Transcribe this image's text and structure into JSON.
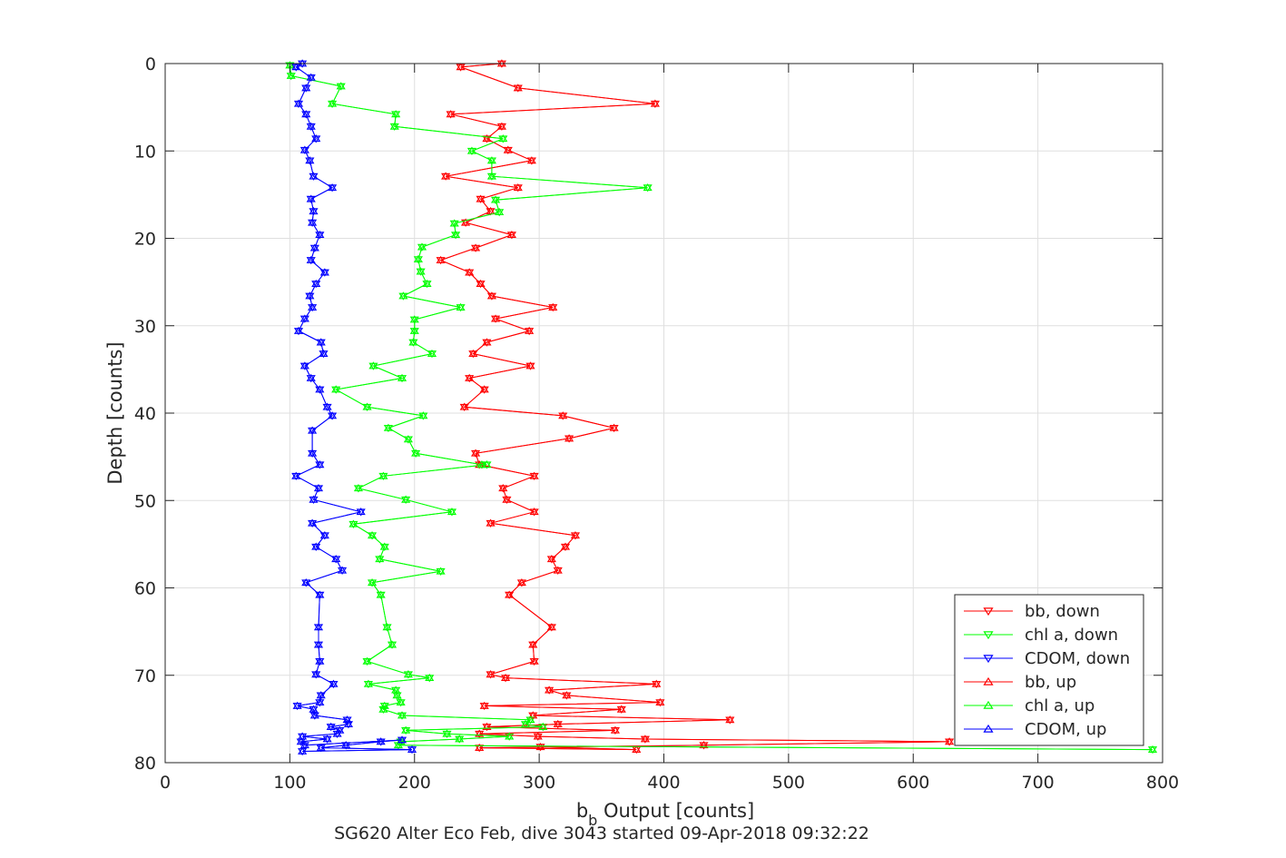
{
  "chart_data": {
    "type": "line",
    "title": "SG620 Alter Eco Feb, dive 3043 started 09-Apr-2018 09:32:22",
    "xlabel_main": "b",
    "xlabel_sub": "b",
    "xlabel_rest": " Output [counts]",
    "ylabel": "Depth [counts]",
    "xlim": [
      0,
      800
    ],
    "ylim": [
      0,
      80
    ],
    "y_reversed": true,
    "grid": true,
    "legend_position": "bottom-right",
    "xticks": [
      0,
      100,
      200,
      300,
      400,
      500,
      600,
      700,
      800
    ],
    "yticks": [
      0,
      10,
      20,
      30,
      40,
      50,
      60,
      70,
      80
    ],
    "series": [
      {
        "name": "bb, down",
        "color": "#ff0000",
        "marker": "down",
        "x": [
          270,
          237,
          283,
          393,
          229,
          270,
          258,
          275,
          294,
          225,
          283,
          253,
          261,
          241,
          278,
          249,
          221,
          244,
          253,
          262,
          311,
          265,
          292,
          258,
          247,
          293,
          244,
          256,
          240,
          319,
          360,
          324,
          249,
          252,
          296,
          271,
          274,
          296,
          261,
          329,
          321,
          310,
          315,
          286,
          276,
          310,
          295,
          296,
          261,
          273,
          394,
          308,
          322,
          397,
          256,
          366,
          295,
          453,
          315,
          258,
          361,
          252,
          299,
          385,
          629,
          432,
          252,
          378,
          301
        ],
        "y": [
          0,
          0.4,
          2.8,
          4.6,
          5.8,
          7.2,
          8.6,
          9.9,
          11.1,
          12.9,
          14.2,
          15.5,
          16.9,
          18.2,
          19.6,
          21.1,
          22.5,
          23.9,
          25.2,
          26.6,
          27.9,
          29.2,
          30.6,
          31.9,
          33.2,
          34.6,
          36.0,
          37.3,
          39.3,
          40.3,
          41.7,
          42.9,
          44.6,
          45.9,
          47.2,
          48.6,
          49.9,
          51.3,
          52.6,
          54.0,
          55.3,
          56.7,
          58.0,
          59.4,
          60.8,
          64.5,
          66.5,
          68.4,
          69.9,
          70.3,
          71.0,
          71.7,
          72.3,
          73.1,
          73.5,
          73.9,
          74.6,
          75.1,
          75.6,
          75.9,
          76.3,
          76.7,
          77.0,
          77.3,
          77.6,
          78.0,
          78.3,
          78.5,
          78.2
        ]
      },
      {
        "name": "chl a, down",
        "color": "#00ff00",
        "marker": "down",
        "x": [
          100,
          101,
          141,
          134,
          185,
          184,
          271,
          246,
          262,
          262,
          387,
          265,
          268,
          232,
          233,
          206,
          203,
          205,
          210,
          191,
          237,
          200,
          200,
          199,
          214,
          167,
          190,
          137,
          162,
          207,
          179,
          195,
          201,
          254,
          258,
          175,
          155,
          193,
          230,
          151,
          166,
          176,
          172,
          221,
          166,
          173,
          178,
          182,
          162,
          195,
          212,
          163,
          185,
          186,
          189,
          176,
          175,
          190,
          293,
          289,
          303,
          193,
          226,
          276,
          236,
          189,
          187,
          792
        ],
        "y": [
          0.2,
          1.4,
          2.6,
          4.6,
          5.8,
          7.2,
          8.6,
          10.0,
          11.1,
          12.9,
          14.2,
          15.6,
          17.0,
          18.3,
          19.6,
          21.0,
          22.4,
          23.8,
          25.2,
          26.6,
          27.9,
          29.3,
          30.6,
          31.9,
          33.2,
          34.6,
          36.0,
          37.3,
          39.3,
          40.3,
          41.7,
          43.0,
          44.6,
          45.9,
          45.9,
          47.2,
          48.6,
          49.9,
          51.3,
          52.7,
          54.0,
          55.3,
          56.7,
          58.1,
          59.4,
          60.8,
          64.5,
          66.5,
          68.4,
          69.9,
          70.3,
          71.0,
          71.7,
          72.3,
          73.1,
          73.5,
          73.9,
          74.6,
          75.1,
          75.6,
          75.9,
          76.3,
          76.7,
          77.0,
          77.3,
          77.6,
          78.0,
          78.5
        ]
      },
      {
        "name": "CDOM, down",
        "color": "#0000ff",
        "marker": "down",
        "x": [
          110,
          105,
          117,
          113,
          107,
          113,
          117,
          121,
          112,
          116,
          119,
          134,
          117,
          119,
          118,
          124,
          120,
          117,
          128,
          121,
          116,
          118,
          112,
          107,
          125,
          127,
          112,
          117,
          124,
          130,
          134,
          118,
          118,
          124,
          105,
          123,
          119,
          157,
          118,
          128,
          121,
          137,
          142,
          113,
          124,
          123,
          123,
          124,
          121,
          135,
          125,
          124,
          106,
          119,
          120,
          146,
          147,
          133,
          140,
          138,
          110,
          130,
          109,
          112,
          190,
          173,
          145,
          125,
          198,
          110
        ],
        "y": [
          0,
          0.4,
          1.6,
          2.8,
          4.6,
          5.8,
          7.2,
          8.6,
          9.9,
          11.1,
          12.9,
          14.2,
          15.5,
          16.9,
          18.2,
          19.6,
          21.1,
          22.5,
          23.9,
          25.2,
          26.6,
          27.9,
          29.2,
          30.6,
          31.9,
          33.2,
          34.6,
          36.0,
          37.3,
          39.3,
          40.3,
          42.0,
          44.6,
          45.9,
          47.2,
          48.6,
          49.9,
          51.3,
          52.6,
          54.0,
          55.3,
          56.7,
          58.0,
          59.4,
          60.8,
          64.5,
          66.5,
          68.4,
          69.9,
          71.0,
          72.3,
          73.1,
          73.5,
          73.9,
          74.6,
          75.1,
          75.6,
          75.9,
          76.3,
          76.7,
          77.0,
          77.3,
          77.6,
          78.0,
          77.4,
          77.6,
          78.0,
          78.3,
          78.5,
          78.7
        ]
      },
      {
        "name": "bb, up",
        "color": "#ff0000",
        "marker": "up",
        "x": [
          270,
          237,
          283,
          393,
          229,
          270,
          258,
          275,
          294,
          225,
          283,
          253,
          261,
          241,
          278,
          249,
          221,
          244,
          253,
          262,
          311,
          265,
          292,
          258,
          247,
          293,
          244,
          256,
          240,
          319,
          360,
          324,
          249,
          252,
          296,
          271,
          274,
          296,
          261,
          329,
          321,
          310,
          315,
          286,
          276,
          310,
          295,
          296,
          261,
          273,
          394,
          308,
          322,
          397,
          256,
          366,
          295,
          453,
          315,
          258,
          361,
          252,
          299,
          385,
          629,
          432,
          252,
          378,
          301
        ],
        "y": [
          0,
          0.4,
          2.8,
          4.6,
          5.8,
          7.2,
          8.6,
          9.9,
          11.1,
          12.9,
          14.2,
          15.5,
          16.9,
          18.2,
          19.6,
          21.1,
          22.5,
          23.9,
          25.2,
          26.6,
          27.9,
          29.2,
          30.6,
          31.9,
          33.2,
          34.6,
          36.0,
          37.3,
          39.3,
          40.3,
          41.7,
          42.9,
          44.6,
          45.9,
          47.2,
          48.6,
          49.9,
          51.3,
          52.6,
          54.0,
          55.3,
          56.7,
          58.0,
          59.4,
          60.8,
          64.5,
          66.5,
          68.4,
          69.9,
          70.3,
          71.0,
          71.7,
          72.3,
          73.1,
          73.5,
          73.9,
          74.6,
          75.1,
          75.6,
          75.9,
          76.3,
          76.7,
          77.0,
          77.3,
          77.6,
          78.0,
          78.3,
          78.5,
          78.2
        ]
      },
      {
        "name": "chl a, up",
        "color": "#00ff00",
        "marker": "up",
        "x": [
          100,
          101,
          141,
          134,
          185,
          184,
          271,
          246,
          262,
          262,
          387,
          265,
          268,
          232,
          233,
          206,
          203,
          205,
          210,
          191,
          237,
          200,
          200,
          199,
          214,
          167,
          190,
          137,
          162,
          207,
          179,
          195,
          201,
          254,
          258,
          175,
          155,
          193,
          230,
          151,
          166,
          176,
          172,
          221,
          166,
          173,
          178,
          182,
          162,
          195,
          212,
          163,
          185,
          186,
          189,
          176,
          175,
          190,
          293,
          289,
          303,
          193,
          226,
          276,
          236,
          189,
          187,
          792
        ],
        "y": [
          0.2,
          1.4,
          2.6,
          4.6,
          5.8,
          7.2,
          8.6,
          10.0,
          11.1,
          12.9,
          14.2,
          15.6,
          17.0,
          18.3,
          19.6,
          21.0,
          22.4,
          23.8,
          25.2,
          26.6,
          27.9,
          29.3,
          30.6,
          31.9,
          33.2,
          34.6,
          36.0,
          37.3,
          39.3,
          40.3,
          41.7,
          43.0,
          44.6,
          45.9,
          45.9,
          47.2,
          48.6,
          49.9,
          51.3,
          52.7,
          54.0,
          55.3,
          56.7,
          58.1,
          59.4,
          60.8,
          64.5,
          66.5,
          68.4,
          69.9,
          70.3,
          71.0,
          71.7,
          72.3,
          73.1,
          73.5,
          73.9,
          74.6,
          75.1,
          75.6,
          75.9,
          76.3,
          76.7,
          77.0,
          77.3,
          77.6,
          78.0,
          78.5
        ]
      },
      {
        "name": "CDOM, up",
        "color": "#0000ff",
        "marker": "up",
        "x": [
          110,
          105,
          117,
          113,
          107,
          113,
          117,
          121,
          112,
          116,
          119,
          134,
          117,
          119,
          118,
          124,
          120,
          117,
          128,
          121,
          116,
          118,
          112,
          107,
          125,
          127,
          112,
          117,
          124,
          130,
          134,
          118,
          118,
          124,
          105,
          123,
          119,
          157,
          118,
          128,
          121,
          137,
          142,
          113,
          124,
          123,
          123,
          124,
          121,
          135,
          125,
          124,
          106,
          119,
          120,
          146,
          147,
          133,
          140,
          138,
          110,
          130,
          109,
          112,
          190,
          173,
          145,
          125,
          198,
          110
        ],
        "y": [
          0,
          0.4,
          1.6,
          2.8,
          4.6,
          5.8,
          7.2,
          8.6,
          9.9,
          11.1,
          12.9,
          14.2,
          15.5,
          16.9,
          18.2,
          19.6,
          21.1,
          22.5,
          23.9,
          25.2,
          26.6,
          27.9,
          29.2,
          30.6,
          31.9,
          33.2,
          34.6,
          36.0,
          37.3,
          39.3,
          40.3,
          42.0,
          44.6,
          45.9,
          47.2,
          48.6,
          49.9,
          51.3,
          52.6,
          54.0,
          55.3,
          56.7,
          58.0,
          59.4,
          60.8,
          64.5,
          66.5,
          68.4,
          69.9,
          71.0,
          72.3,
          73.1,
          73.5,
          73.9,
          74.6,
          75.1,
          75.6,
          75.9,
          76.3,
          76.7,
          77.0,
          77.3,
          77.6,
          78.0,
          77.4,
          77.6,
          78.0,
          78.3,
          78.5,
          78.7
        ]
      }
    ]
  }
}
